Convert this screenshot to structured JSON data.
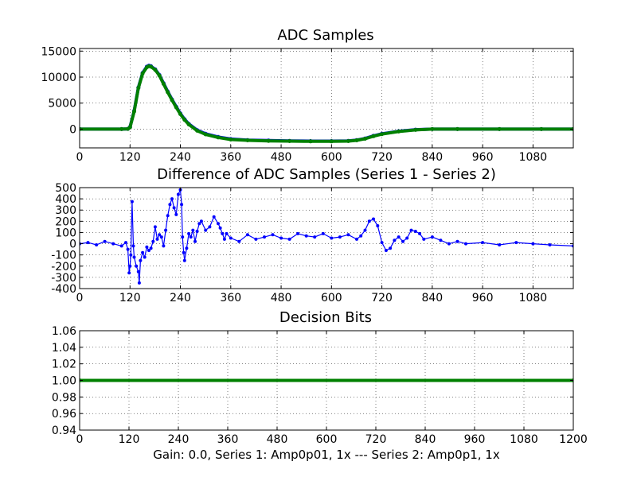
{
  "figure": {
    "caption": "Gain: 0.0, Series 1: Amp0p01, 1x --- Series 2: Amp0p1, 1x"
  },
  "colors": {
    "series1": "#0000ff",
    "series2": "#008000",
    "grid": "#000000"
  },
  "chart_data": [
    {
      "type": "line",
      "title": "ADC Samples",
      "xlabel": "",
      "ylabel": "",
      "xlim": [
        0,
        1176
      ],
      "ylim": [
        -3600,
        15500
      ],
      "xticks": [
        0,
        120,
        240,
        360,
        480,
        600,
        720,
        840,
        960,
        1080
      ],
      "yticks": [
        0,
        5000,
        10000,
        15000
      ],
      "grid": true,
      "series": [
        {
          "color": "#0000ff",
          "marker": "dot",
          "x": [
            0,
            100,
            115,
            120,
            130,
            140,
            150,
            160,
            165,
            170,
            180,
            190,
            200,
            210,
            220,
            230,
            240,
            250,
            260,
            280,
            300,
            330,
            360,
            400,
            450,
            500,
            550,
            600,
            640,
            660,
            680,
            700,
            720,
            760,
            800,
            840,
            900,
            1000,
            1100,
            1176
          ],
          "y": [
            0,
            0,
            50,
            400,
            3500,
            8000,
            10800,
            12000,
            12200,
            12100,
            11500,
            10400,
            8800,
            7200,
            5700,
            4300,
            3000,
            1900,
            1000,
            -200,
            -900,
            -1500,
            -1900,
            -2100,
            -2200,
            -2250,
            -2300,
            -2300,
            -2250,
            -2100,
            -1800,
            -1300,
            -900,
            -400,
            -100,
            0,
            0,
            0,
            0,
            0
          ]
        },
        {
          "color": "#008000",
          "marker": "dot",
          "x": [
            0,
            100,
            115,
            120,
            130,
            140,
            150,
            160,
            165,
            170,
            180,
            190,
            200,
            210,
            220,
            230,
            240,
            250,
            260,
            280,
            300,
            330,
            360,
            400,
            450,
            500,
            550,
            600,
            640,
            660,
            680,
            700,
            720,
            760,
            800,
            840,
            900,
            1000,
            1100,
            1176
          ],
          "y": [
            0,
            0,
            50,
            350,
            3400,
            7900,
            10700,
            11900,
            12100,
            12000,
            11400,
            10300,
            8700,
            7100,
            5600,
            4200,
            2900,
            1800,
            900,
            -300,
            -1000,
            -1600,
            -2000,
            -2150,
            -2250,
            -2300,
            -2350,
            -2350,
            -2300,
            -2150,
            -1850,
            -1350,
            -950,
            -450,
            -150,
            0,
            0,
            0,
            0,
            0
          ]
        }
      ]
    },
    {
      "type": "line",
      "title": "Difference of ADC Samples (Series 1 - Series 2)",
      "xlabel": "",
      "ylabel": "",
      "xlim": [
        0,
        1176
      ],
      "ylim": [
        -400,
        500
      ],
      "xticks": [
        0,
        120,
        240,
        360,
        480,
        600,
        720,
        840,
        960,
        1080
      ],
      "yticks": [
        -400,
        -300,
        -200,
        -100,
        0,
        100,
        200,
        300,
        400,
        500
      ],
      "grid": true,
      "series": [
        {
          "color": "#0000ff",
          "marker": "dot",
          "x": [
            0,
            20,
            40,
            60,
            80,
            100,
            110,
            115,
            118,
            120,
            122,
            125,
            128,
            130,
            135,
            140,
            142,
            145,
            150,
            155,
            160,
            165,
            170,
            175,
            180,
            185,
            190,
            195,
            200,
            205,
            210,
            215,
            220,
            225,
            230,
            235,
            240,
            243,
            245,
            248,
            250,
            255,
            260,
            265,
            270,
            275,
            280,
            285,
            290,
            300,
            310,
            320,
            330,
            335,
            340,
            345,
            350,
            360,
            380,
            400,
            420,
            440,
            460,
            480,
            500,
            520,
            540,
            560,
            580,
            600,
            620,
            640,
            660,
            670,
            680,
            690,
            700,
            710,
            720,
            730,
            740,
            750,
            760,
            770,
            780,
            790,
            800,
            810,
            820,
            840,
            860,
            880,
            900,
            920,
            960,
            1000,
            1040,
            1080,
            1120,
            1176
          ],
          "y": [
            0,
            10,
            -10,
            20,
            0,
            -20,
            10,
            -50,
            -260,
            -200,
            -100,
            375,
            -20,
            -120,
            -200,
            -250,
            -350,
            -150,
            -80,
            -120,
            -30,
            -60,
            -40,
            20,
            150,
            40,
            80,
            60,
            -20,
            120,
            250,
            350,
            400,
            320,
            260,
            440,
            480,
            350,
            60,
            -80,
            -150,
            -40,
            90,
            60,
            120,
            20,
            110,
            180,
            200,
            120,
            150,
            240,
            180,
            140,
            90,
            40,
            90,
            50,
            20,
            80,
            40,
            60,
            80,
            50,
            40,
            90,
            70,
            60,
            90,
            50,
            60,
            80,
            40,
            70,
            120,
            200,
            220,
            160,
            10,
            -60,
            -40,
            30,
            60,
            20,
            50,
            120,
            110,
            90,
            40,
            60,
            30,
            0,
            20,
            0,
            10,
            -10,
            10,
            0,
            -10,
            -20
          ]
        }
      ]
    },
    {
      "type": "line",
      "title": "Decision Bits",
      "xlabel": "",
      "ylabel": "",
      "xlim": [
        0,
        1200
      ],
      "ylim": [
        0.94,
        1.06
      ],
      "xticks": [
        0,
        120,
        240,
        360,
        480,
        600,
        720,
        840,
        960,
        1080,
        1200
      ],
      "yticks": [
        0.94,
        0.96,
        0.98,
        1.0,
        1.02,
        1.04,
        1.06
      ],
      "grid": true,
      "series": [
        {
          "color": "#008000",
          "marker": "dot",
          "x": [
            0,
            1200
          ],
          "y": [
            1.0,
            1.0
          ]
        }
      ]
    }
  ]
}
